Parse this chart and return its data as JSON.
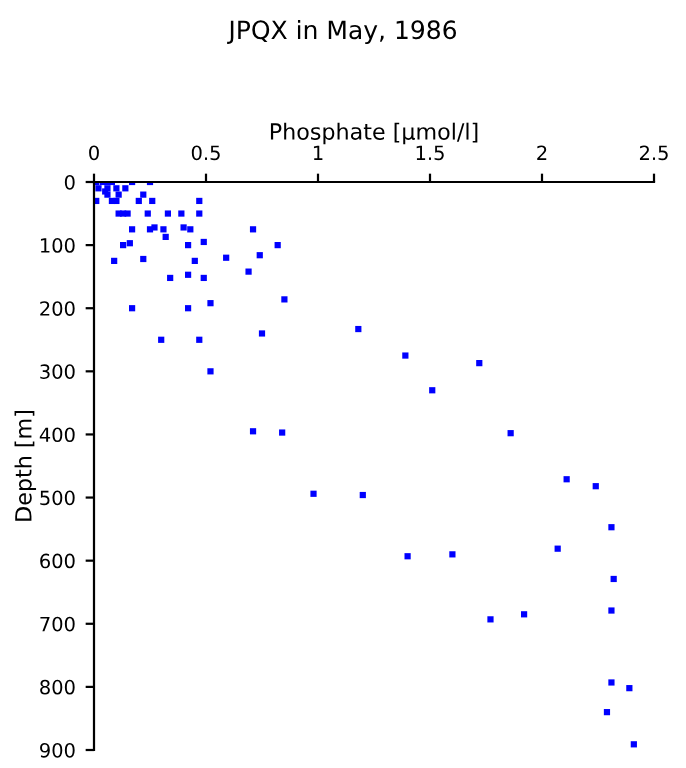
{
  "chart_data": {
    "type": "scatter",
    "title": "JPQX in May, 1986",
    "xlabel": "Phosphate [µmol/l]",
    "ylabel": "Depth [m]",
    "xlim": [
      0,
      2.5
    ],
    "xticks": [
      0,
      0.5,
      1,
      1.5,
      2,
      2.5
    ],
    "ylim": [
      900,
      0
    ],
    "yticks": [
      0,
      100,
      200,
      300,
      400,
      500,
      600,
      700,
      800,
      900
    ],
    "marker": "square",
    "grid": false,
    "series": [
      {
        "color": "#0000ff",
        "x": [
          0.01,
          0.04,
          0.06,
          0.08,
          0.17,
          0.25,
          0.02,
          0.06,
          0.1,
          0.14,
          0.05,
          0.06,
          0.11,
          0.22,
          0.01,
          0.1,
          0.08,
          0.2,
          0.26,
          0.47,
          0.11,
          0.13,
          0.15,
          0.24,
          0.33,
          0.39,
          0.47,
          0.17,
          0.25,
          0.27,
          0.31,
          0.4,
          0.43,
          0.71,
          0.32,
          0.13,
          0.16,
          0.42,
          0.49,
          0.82,
          0.74,
          0.59,
          0.22,
          0.09,
          0.45,
          0.69,
          0.42,
          0.34,
          0.49,
          0.85,
          0.52,
          0.17,
          0.42,
          1.18,
          0.75,
          0.3,
          0.47,
          1.39,
          1.72,
          0.52,
          1.51,
          0.71,
          0.84,
          1.86,
          0.98,
          1.2,
          2.11,
          2.24,
          2.31,
          2.07,
          1.4,
          1.6,
          2.32,
          1.77,
          1.92,
          2.31,
          2.31,
          2.39,
          2.29,
          2.41
        ],
        "values": [
          0,
          0,
          0,
          0,
          0,
          0,
          10,
          10,
          10,
          10,
          15,
          20,
          20,
          20,
          30,
          30,
          30,
          30,
          30,
          30,
          50,
          50,
          50,
          50,
          50,
          50,
          50,
          75,
          75,
          72,
          75,
          72,
          75,
          75,
          87,
          100,
          97,
          100,
          95,
          100,
          116,
          120,
          122,
          125,
          125,
          142,
          147,
          152,
          152,
          186,
          192,
          200,
          200,
          233,
          240,
          250,
          250,
          275,
          287,
          300,
          330,
          395,
          397,
          398,
          494,
          496,
          471,
          482,
          547,
          581,
          593,
          590,
          629,
          693,
          685,
          679,
          793,
          802,
          840,
          891
        ]
      }
    ]
  }
}
